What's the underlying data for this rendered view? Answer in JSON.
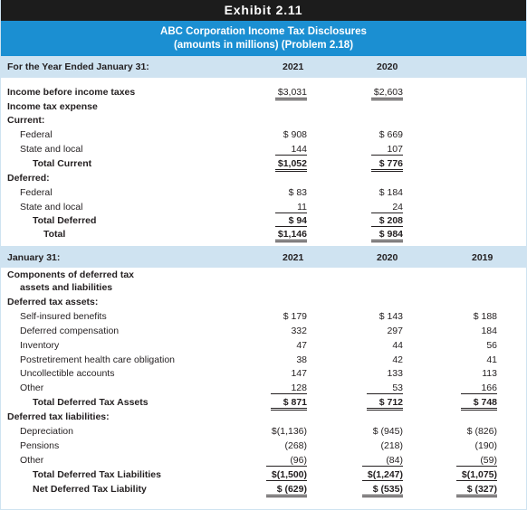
{
  "exhibit_label": "Exhibit 2.11",
  "title_line1": "ABC Corporation Income Tax Disclosures",
  "title_line2": "(amounts in millions) (Problem 2.18)",
  "section1": {
    "header_label": "For the Year Ended January 31:",
    "col_2021": "2021",
    "col_2020": "2020",
    "income_before_taxes": {
      "label": "Income before income taxes",
      "v2021": "$3,031",
      "v2020": "$2,603"
    },
    "income_tax_expense_label": "Income tax expense",
    "current_label": "Current:",
    "current_federal": {
      "label": "Federal",
      "v2021": "$  908",
      "v2020": "$  669"
    },
    "current_state": {
      "label": "State and local",
      "v2021": "144",
      "v2020": "107"
    },
    "total_current": {
      "label": "Total Current",
      "v2021": "$1,052",
      "v2020": "$  776"
    },
    "deferred_label": "Deferred:",
    "deferred_federal": {
      "label": "Federal",
      "v2021": "$    83",
      "v2020": "$  184"
    },
    "deferred_state": {
      "label": "State and local",
      "v2021": "11",
      "v2020": "24"
    },
    "total_deferred": {
      "label": "Total Deferred",
      "v2021": "$   94",
      "v2020": "$  208"
    },
    "total": {
      "label": "Total",
      "v2021": "$1,146",
      "v2020": "$  984"
    }
  },
  "section2": {
    "header_label": "January 31:",
    "col_2021": "2021",
    "col_2020": "2020",
    "col_2019": "2019",
    "components_line1": "Components of deferred tax",
    "components_line2": "assets and liabilities",
    "dta_label": "Deferred tax assets:",
    "self_insured": {
      "label": "Self-insured benefits",
      "v2021": "$    179",
      "v2020": "$    143",
      "v2019": "$    188"
    },
    "deferred_comp": {
      "label": "Deferred compensation",
      "v2021": "332",
      "v2020": "297",
      "v2019": "184"
    },
    "inventory": {
      "label": "Inventory",
      "v2021": "47",
      "v2020": "44",
      "v2019": "56"
    },
    "postretirement": {
      "label": "Postretirement health care obligation",
      "v2021": "38",
      "v2020": "42",
      "v2019": "41"
    },
    "uncollectible": {
      "label": "Uncollectible accounts",
      "v2021": "147",
      "v2020": "133",
      "v2019": "113"
    },
    "other_assets": {
      "label": "Other",
      "v2021": "128",
      "v2020": "53",
      "v2019": "166"
    },
    "total_dta": {
      "label": "Total Deferred Tax Assets",
      "v2021": "$   871",
      "v2020": "$   712",
      "v2019": "$   748"
    },
    "dtl_label": "Deferred tax liabilities:",
    "depreciation": {
      "label": "Depreciation",
      "v2021": "$(1,136)",
      "v2020": "$   (945)",
      "v2019": "$   (826)"
    },
    "pensions": {
      "label": "Pensions",
      "v2021": "(268)",
      "v2020": "(218)",
      "v2019": "(190)"
    },
    "other_liab": {
      "label": "Other",
      "v2021": "(96)",
      "v2020": "(84)",
      "v2019": "(59)"
    },
    "total_dtl": {
      "label": "Total Deferred Tax Liabilities",
      "v2021": "$(1,500)",
      "v2020": "$(1,247)",
      "v2019": "$(1,075)"
    },
    "net_dtl": {
      "label": "Net Deferred Tax Liability",
      "v2021": "$  (629)",
      "v2020": "$  (535)",
      "v2019": "$  (327)"
    }
  }
}
